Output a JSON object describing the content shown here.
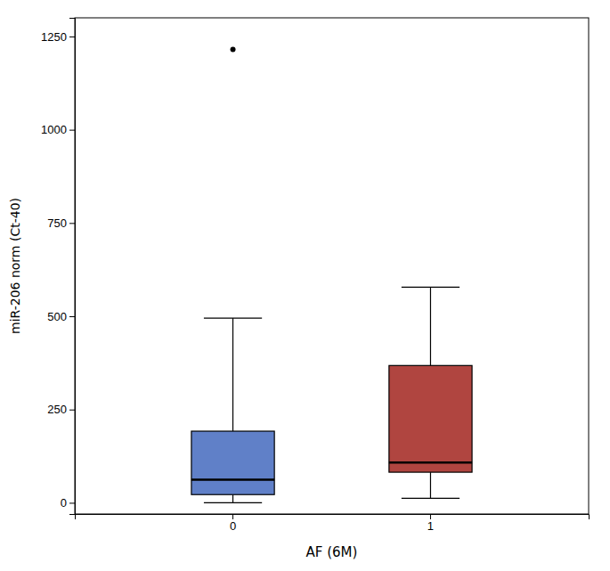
{
  "chart_data": {
    "type": "box",
    "xlabel": "AF (6M)",
    "ylabel": "miR-206 norm (Ct-40)",
    "categories": [
      "0",
      "1"
    ],
    "colors": [
      "#6080c8",
      "#b04540"
    ],
    "boxes": [
      {
        "q1": 22,
        "median": 62,
        "q3": 192,
        "whisker_low": 0,
        "whisker_high": 495,
        "outliers": [
          1215
        ]
      },
      {
        "q1": 82,
        "median": 108,
        "q3": 368,
        "whisker_low": 12,
        "whisker_high": 578
      }
    ],
    "ylim": [
      -30,
      1300
    ],
    "yticks": [
      0,
      250,
      500,
      750,
      1000,
      1250
    ],
    "grid": false,
    "marker": "point"
  }
}
